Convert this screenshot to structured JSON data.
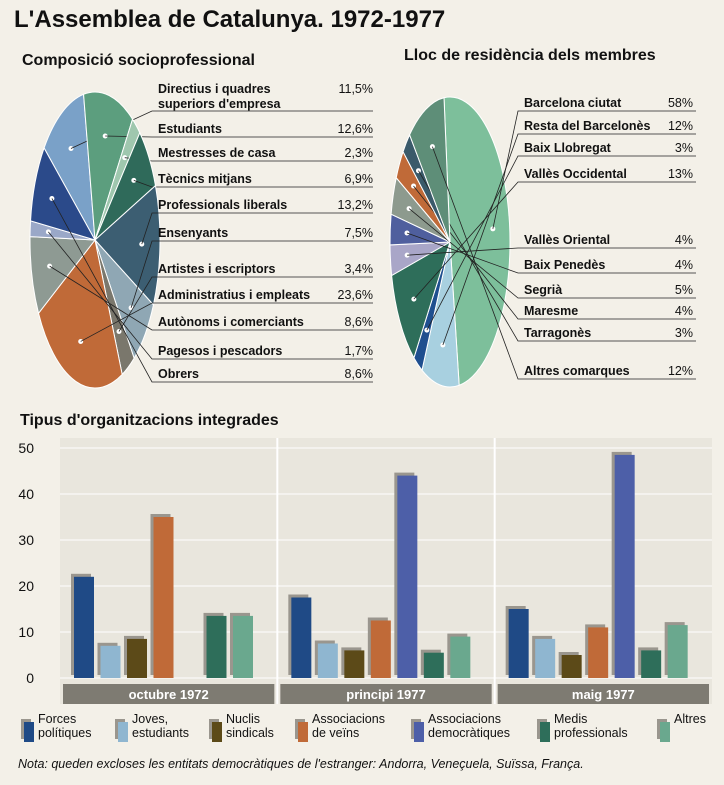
{
  "title": "L'Assemblea de Catalunya. 1972-1977",
  "chart_data": [
    {
      "type": "pie",
      "title": "Composició socioprofessional",
      "slices": [
        {
          "label": "Directius i quadres superiors d'empresa",
          "pct": "11,5%",
          "value": 11.5,
          "color": "#7aa1c8"
        },
        {
          "label": "Estudiants",
          "pct": "12,6%",
          "value": 12.6,
          "color": "#5c9e7e"
        },
        {
          "label": "Mestresses de casa",
          "pct": "2,3%",
          "value": 2.3,
          "color": "#9fc7ae"
        },
        {
          "label": "Tècnics mitjans",
          "pct": "6,9%",
          "value": 6.9,
          "color": "#2f6a5a"
        },
        {
          "label": "Professionals liberals",
          "pct": "13,2%",
          "value": 13.2,
          "color": "#3c5e72"
        },
        {
          "label": "Ensenyants",
          "pct": "7,5%",
          "value": 7.5,
          "color": "#8fa7b4"
        },
        {
          "label": "Artistes i escriptors",
          "pct": "3,4%",
          "value": 3.4,
          "color": "#7a776c"
        },
        {
          "label": "Administratius i empleats",
          "pct": "23,6%",
          "value": 23.6,
          "color": "#c06a38"
        },
        {
          "label": "Autònoms i comerciants",
          "pct": "8,6%",
          "value": 8.6,
          "color": "#8e9a93"
        },
        {
          "label": "Pagesos i pescadors",
          "pct": "1,7%",
          "value": 1.7,
          "color": "#9aa8c8"
        },
        {
          "label": "Obrers",
          "pct": "8,6%",
          "value": 8.6,
          "color": "#2b4a8a"
        }
      ]
    },
    {
      "type": "pie",
      "title": "Lloc de residència dels membres",
      "slices": [
        {
          "label": "Barcelona ciutat",
          "pct": "58%",
          "value": 58,
          "color": "#7dbf9b"
        },
        {
          "label": "Resta del Barcelonès",
          "pct": "12%",
          "value": 12,
          "color": "#a8d0e0"
        },
        {
          "label": "Baix Llobregat",
          "pct": "3%",
          "value": 3,
          "color": "#1f4f8f"
        },
        {
          "label": "Vallès Occidental",
          "pct": "13%",
          "value": 13,
          "color": "#2e6e5a"
        },
        {
          "label": "Vallès Oriental",
          "pct": "4%",
          "value": 4,
          "color": "#a9a6c8"
        },
        {
          "label": "Baix Penedès",
          "pct": "4%",
          "value": 4,
          "color": "#4f5f9e"
        },
        {
          "label": "Segrià",
          "pct": "5%",
          "value": 5,
          "color": "#8d9a8e"
        },
        {
          "label": "Maresme",
          "pct": "4%",
          "value": 4,
          "color": "#c06a38"
        },
        {
          "label": "Tarragonès",
          "pct": "3%",
          "value": 3,
          "color": "#3a5a6a"
        },
        {
          "label": "Altres comarques",
          "pct": "12%",
          "value": 12,
          "color": "#5e8e78"
        }
      ]
    },
    {
      "type": "bar",
      "title": "Tipus d'organitzacions integrades",
      "categories": [
        "octubre 1972",
        "principi 1977",
        "maig 1977"
      ],
      "ylim": [
        0,
        50
      ],
      "yticks": [
        "0",
        "10",
        "20",
        "30",
        "40",
        "50"
      ],
      "series": [
        {
          "name": "Forces\npolítiques",
          "color": "#1f4a86",
          "values": [
            22,
            17.5,
            15
          ]
        },
        {
          "name": "Joves,\nestudiants",
          "color": "#8fb6d0",
          "values": [
            7,
            7.5,
            8.5
          ]
        },
        {
          "name": "Nuclis\nsindicals",
          "color": "#5c4a18",
          "values": [
            8.5,
            6,
            5
          ]
        },
        {
          "name": "Associacions\nde veïns",
          "color": "#c06a38",
          "values": [
            35,
            12.5,
            11
          ]
        },
        {
          "name": "Associacions\ndemocràtiques",
          "color": "#4d5fa8",
          "values": [
            0,
            44,
            48.5
          ]
        },
        {
          "name": "Medis\nprofessionals",
          "color": "#2e6e5a",
          "values": [
            13.5,
            5.5,
            6
          ]
        },
        {
          "name": "Altres",
          "color": "#6aa88e",
          "values": [
            13.5,
            9,
            11.5
          ]
        }
      ]
    }
  ],
  "note": "Nota: queden excloses les entitats democràtiques de l'estranger: Andorra, Veneçuela, Suïssa, França."
}
